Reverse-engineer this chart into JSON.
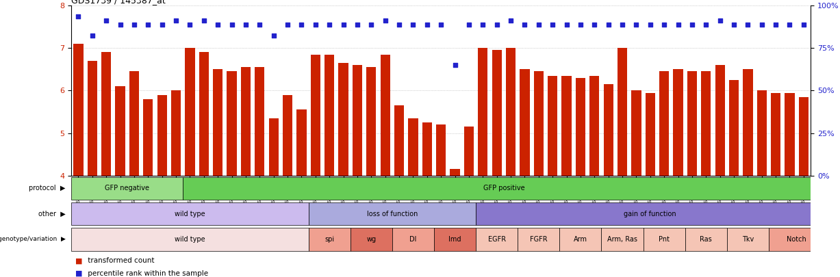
{
  "title": "GDS1739 / 145387_at",
  "samples": [
    "GSM88220",
    "GSM88221",
    "GSM88222",
    "GSM88244",
    "GSM88245",
    "GSM88259",
    "GSM88260",
    "GSM88261",
    "GSM88223",
    "GSM88224",
    "GSM88225",
    "GSM88247",
    "GSM88248",
    "GSM88249",
    "GSM88262",
    "GSM88263",
    "GSM88264",
    "GSM88217",
    "GSM88218",
    "GSM88219",
    "GSM88241",
    "GSM88242",
    "GSM88243",
    "GSM88250",
    "GSM88251",
    "GSM88252",
    "GSM88253",
    "GSM88254",
    "GSM88255",
    "GSM88211",
    "GSM88212",
    "GSM88213",
    "GSM88214",
    "GSM88215",
    "GSM88216",
    "GSM88226",
    "GSM88227",
    "GSM88228",
    "GSM88229",
    "GSM88230",
    "GSM88231",
    "GSM88232",
    "GSM88233",
    "GSM88234",
    "GSM88235",
    "GSM88236",
    "GSM88237",
    "GSM88238",
    "GSM88239",
    "GSM88240",
    "GSM88256",
    "GSM88257",
    "GSM88258"
  ],
  "bar_values": [
    7.1,
    6.7,
    6.9,
    6.1,
    6.45,
    5.8,
    5.9,
    6.0,
    7.0,
    6.9,
    6.5,
    6.45,
    6.55,
    6.55,
    5.35,
    5.9,
    5.55,
    6.85,
    6.85,
    6.65,
    6.6,
    6.55,
    6.85,
    5.65,
    5.35,
    5.25,
    5.2,
    4.15,
    5.15,
    7.0,
    6.95,
    7.0,
    6.5,
    6.45,
    6.35,
    6.35,
    6.3,
    6.35,
    6.15,
    7.0,
    6.0,
    5.95,
    6.45,
    6.5,
    6.45,
    6.45,
    6.6,
    6.25,
    6.5,
    6.0,
    5.95,
    5.95,
    5.85
  ],
  "percentile_values": [
    7.75,
    7.3,
    7.65,
    7.55,
    7.55,
    7.55,
    7.55,
    7.65,
    7.55,
    7.65,
    7.55,
    7.55,
    7.55,
    7.55,
    7.3,
    7.55,
    7.55,
    7.55,
    7.55,
    7.55,
    7.55,
    7.55,
    7.65,
    7.55,
    7.55,
    7.55,
    7.55,
    6.6,
    7.55,
    7.55,
    7.55,
    7.65,
    7.55,
    7.55,
    7.55,
    7.55,
    7.55,
    7.55,
    7.55,
    7.55,
    7.55,
    7.55,
    7.55,
    7.55,
    7.55,
    7.55,
    7.65,
    7.55,
    7.55,
    7.55,
    7.55,
    7.55,
    7.55
  ],
  "ylim": [
    4.0,
    8.0
  ],
  "yticks": [
    4,
    5,
    6,
    7,
    8
  ],
  "bar_color": "#cc2200",
  "percentile_color": "#2222cc",
  "protocol_groups": [
    {
      "label": "GFP negative",
      "start": 0,
      "end": 8,
      "color": "#99dd88"
    },
    {
      "label": "GFP positive",
      "start": 8,
      "end": 54,
      "color": "#66cc55"
    }
  ],
  "other_groups": [
    {
      "label": "wild type",
      "start": 0,
      "end": 17,
      "color": "#ccbbee"
    },
    {
      "label": "loss of function",
      "start": 17,
      "end": 29,
      "color": "#aaaadd"
    },
    {
      "label": "gain of function",
      "start": 29,
      "end": 54,
      "color": "#8877cc"
    }
  ],
  "genotype_groups": [
    {
      "label": "wild type",
      "start": 0,
      "end": 17,
      "color": "#f5e0e0"
    },
    {
      "label": "spi",
      "start": 17,
      "end": 20,
      "color": "#f0a090"
    },
    {
      "label": "wg",
      "start": 20,
      "end": 23,
      "color": "#dd7060"
    },
    {
      "label": "Dl",
      "start": 23,
      "end": 26,
      "color": "#f0a090"
    },
    {
      "label": "Imd",
      "start": 26,
      "end": 29,
      "color": "#dd7060"
    },
    {
      "label": "EGFR",
      "start": 29,
      "end": 32,
      "color": "#f5c5b5"
    },
    {
      "label": "FGFR",
      "start": 32,
      "end": 35,
      "color": "#f5c5b5"
    },
    {
      "label": "Arm",
      "start": 35,
      "end": 38,
      "color": "#f5c5b5"
    },
    {
      "label": "Arm, Ras",
      "start": 38,
      "end": 41,
      "color": "#f5c5b5"
    },
    {
      "label": "Pnt",
      "start": 41,
      "end": 44,
      "color": "#f5c5b5"
    },
    {
      "label": "Ras",
      "start": 44,
      "end": 47,
      "color": "#f5c5b5"
    },
    {
      "label": "Tkv",
      "start": 47,
      "end": 50,
      "color": "#f5c5b5"
    },
    {
      "label": "Notch",
      "start": 50,
      "end": 54,
      "color": "#f0a090"
    }
  ],
  "row_labels": [
    "protocol",
    "other",
    "genotype/variation"
  ],
  "background_color": "#ffffff",
  "grid_color": "#aaaaaa"
}
